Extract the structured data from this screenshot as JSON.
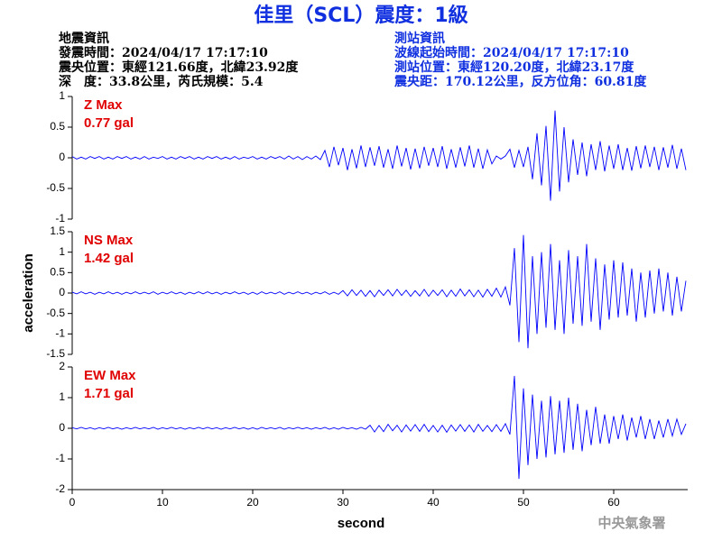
{
  "header": {
    "title": "佳里（SCL）震度：1級",
    "info_left": [
      "地震資訊",
      "發震時間：2024/04/17 17:17:10",
      "震央位置：東經121.66度，北緯23.92度",
      "深　度：33.8公里，芮氏規模：5.4"
    ],
    "info_right": [
      "測站資訊",
      "波線起始時間：2024/04/17 17:17:10",
      "測站位置：東經120.20度，北緯23.17度",
      "震央距：170.12公里，反方位角：60.81度"
    ]
  },
  "footer": "中央氣象署",
  "chart_data": [
    {
      "type": "line",
      "color": "#0000ff",
      "annotation": [
        "Z Max",
        "0.77 gal"
      ],
      "xlim": [
        0,
        68.2
      ],
      "ylim": [
        -1,
        1
      ],
      "yticks": [
        1,
        0.5,
        0,
        -0.5,
        -1
      ],
      "x": [
        0,
        0.5,
        1,
        1.5,
        2,
        2.5,
        3,
        3.5,
        4,
        4.5,
        5,
        5.5,
        6,
        6.5,
        7,
        7.5,
        8,
        8.5,
        9,
        9.5,
        10,
        10.5,
        11,
        11.5,
        12,
        12.5,
        13,
        13.5,
        14,
        14.5,
        15,
        15.5,
        16,
        16.5,
        17,
        17.5,
        18,
        18.5,
        19,
        19.5,
        20,
        20.5,
        21,
        21.5,
        22,
        22.5,
        23,
        23.5,
        24,
        24.5,
        25,
        25.5,
        26,
        26.5,
        27,
        27.5,
        28,
        28.5,
        29,
        29.5,
        30,
        30.5,
        31,
        31.5,
        32,
        32.5,
        33,
        33.5,
        34,
        34.5,
        35,
        35.5,
        36,
        36.5,
        37,
        37.5,
        38,
        38.5,
        39,
        39.5,
        40,
        40.5,
        41,
        41.5,
        42,
        42.5,
        43,
        43.5,
        44,
        44.5,
        45,
        45.5,
        46,
        46.5,
        47,
        47.5,
        48,
        48.5,
        49,
        49.5,
        50,
        50.5,
        51,
        51.5,
        52,
        52.5,
        53,
        53.5,
        54,
        54.5,
        55,
        55.5,
        56,
        56.5,
        57,
        57.5,
        58,
        58.5,
        59,
        59.5,
        60,
        60.5,
        61,
        61.5,
        62,
        62.5,
        63,
        63.5,
        64,
        64.5,
        65,
        65.5,
        66,
        66.5,
        67,
        67.5,
        68
      ],
      "values": [
        0.02,
        -0.02,
        0.01,
        -0.02,
        0.02,
        -0.01,
        0.02,
        -0.02,
        0.01,
        -0.02,
        0.02,
        -0.01,
        0.02,
        -0.02,
        0.01,
        -0.02,
        0.02,
        -0.02,
        0.01,
        -0.01,
        0.02,
        -0.02,
        0.01,
        -0.02,
        0.02,
        -0.01,
        0.02,
        -0.02,
        0.01,
        -0.02,
        0.02,
        -0.01,
        0.02,
        -0.02,
        0.01,
        -0.02,
        0.02,
        -0.02,
        0.01,
        -0.01,
        0.02,
        -0.02,
        0.01,
        -0.02,
        0.02,
        -0.01,
        0.02,
        -0.02,
        0.03,
        -0.02,
        0.02,
        -0.03,
        0.02,
        -0.02,
        0.03,
        -0.03,
        0.12,
        -0.15,
        0.18,
        -0.12,
        0.16,
        -0.2,
        0.14,
        -0.17,
        0.2,
        -0.15,
        0.17,
        -0.13,
        0.19,
        -0.16,
        0.14,
        -0.18,
        0.2,
        -0.14,
        0.16,
        -0.19,
        0.15,
        -0.17,
        0.18,
        -0.13,
        0.16,
        -0.15,
        0.19,
        -0.18,
        0.14,
        -0.16,
        0.17,
        -0.14,
        0.2,
        -0.16,
        0.15,
        -0.18,
        0.13,
        -0.1,
        0.03,
        -0.02,
        0.03,
        0.14,
        -0.16,
        0.12,
        -0.15,
        0.18,
        -0.35,
        0.4,
        -0.45,
        0.52,
        -0.7,
        0.77,
        -0.55,
        0.5,
        -0.4,
        0.3,
        -0.28,
        0.25,
        -0.3,
        0.22,
        -0.2,
        0.27,
        -0.22,
        0.2,
        -0.18,
        0.22,
        -0.2,
        0.16,
        -0.21,
        0.19,
        -0.17,
        0.2,
        -0.15,
        0.18,
        -0.2,
        0.17,
        -0.16,
        0.21,
        -0.18,
        0.15,
        -0.2
      ]
    },
    {
      "type": "line",
      "color": "#0000ff",
      "annotation": [
        "NS Max",
        "1.42 gal"
      ],
      "ylabel": "acceleration",
      "xlim": [
        0,
        68.2
      ],
      "ylim": [
        -1.5,
        1.5
      ],
      "yticks": [
        1.5,
        1,
        0.5,
        0,
        -0.5,
        -1,
        -1.5
      ],
      "x": [
        0,
        0.5,
        1,
        1.5,
        2,
        2.5,
        3,
        3.5,
        4,
        4.5,
        5,
        5.5,
        6,
        6.5,
        7,
        7.5,
        8,
        8.5,
        9,
        9.5,
        10,
        10.5,
        11,
        11.5,
        12,
        12.5,
        13,
        13.5,
        14,
        14.5,
        15,
        15.5,
        16,
        16.5,
        17,
        17.5,
        18,
        18.5,
        19,
        19.5,
        20,
        20.5,
        21,
        21.5,
        22,
        22.5,
        23,
        23.5,
        24,
        24.5,
        25,
        25.5,
        26,
        26.5,
        27,
        27.5,
        28,
        28.5,
        29,
        29.5,
        30,
        30.5,
        31,
        31.5,
        32,
        32.5,
        33,
        33.5,
        34,
        34.5,
        35,
        35.5,
        36,
        36.5,
        37,
        37.5,
        38,
        38.5,
        39,
        39.5,
        40,
        40.5,
        41,
        41.5,
        42,
        42.5,
        43,
        43.5,
        44,
        44.5,
        45,
        45.5,
        46,
        46.5,
        47,
        47.5,
        48,
        48.5,
        49,
        49.5,
        50,
        50.5,
        51,
        51.5,
        52,
        52.5,
        53,
        53.5,
        54,
        54.5,
        55,
        55.5,
        56,
        56.5,
        57,
        57.5,
        58,
        58.5,
        59,
        59.5,
        60,
        60.5,
        61,
        61.5,
        62,
        62.5,
        63,
        63.5,
        64,
        64.5,
        65,
        65.5,
        66,
        66.5,
        67,
        67.5,
        68
      ],
      "values": [
        0.02,
        -0.02,
        0.03,
        -0.02,
        0.02,
        -0.03,
        0.02,
        -0.02,
        0.03,
        -0.02,
        0.02,
        -0.03,
        0.02,
        -0.02,
        0.03,
        -0.02,
        0.02,
        -0.02,
        0.03,
        -0.03,
        0.02,
        -0.02,
        0.03,
        -0.02,
        0.02,
        -0.03,
        0.02,
        -0.02,
        0.03,
        -0.02,
        0.03,
        -0.02,
        0.02,
        -0.03,
        0.02,
        -0.02,
        0.03,
        -0.02,
        0.02,
        -0.03,
        0.02,
        -0.03,
        0.03,
        -0.02,
        0.02,
        -0.02,
        0.03,
        -0.03,
        0.02,
        -0.02,
        0.03,
        -0.02,
        0.02,
        -0.03,
        0.02,
        -0.02,
        0.03,
        -0.03,
        0.02,
        -0.03,
        0.06,
        -0.07,
        0.08,
        -0.06,
        0.07,
        -0.08,
        0.06,
        -0.09,
        0.07,
        -0.06,
        0.08,
        -0.07,
        0.09,
        -0.06,
        0.07,
        -0.08,
        0.06,
        -0.07,
        0.09,
        -0.08,
        0.07,
        -0.06,
        0.08,
        -0.09,
        0.07,
        -0.08,
        0.1,
        -0.07,
        0.08,
        -0.09,
        0.07,
        -0.1,
        0.09,
        -0.08,
        0.12,
        -0.1,
        0.15,
        -0.3,
        1.1,
        -1.2,
        1.42,
        -1.35,
        0.9,
        -1.0,
        1.0,
        -0.85,
        1.2,
        -0.9,
        0.8,
        -1.0,
        1.05,
        -0.75,
        0.9,
        -0.8,
        1.2,
        -0.7,
        0.85,
        -0.9,
        0.7,
        -0.65,
        0.8,
        -0.6,
        0.75,
        -0.55,
        0.6,
        -0.7,
        0.5,
        -0.6,
        0.55,
        -0.5,
        0.6,
        -0.45,
        0.5,
        -0.55,
        0.4,
        -0.45,
        0.3
      ]
    },
    {
      "type": "line",
      "color": "#0000ff",
      "annotation": [
        "EW Max",
        "1.71 gal"
      ],
      "xlabel": "second",
      "xlim": [
        0,
        68.2
      ],
      "xticks": [
        0,
        10,
        20,
        30,
        40,
        50,
        60
      ],
      "ylim": [
        -2,
        2
      ],
      "yticks": [
        2,
        1,
        0,
        -1,
        -2
      ],
      "x": [
        0,
        0.5,
        1,
        1.5,
        2,
        2.5,
        3,
        3.5,
        4,
        4.5,
        5,
        5.5,
        6,
        6.5,
        7,
        7.5,
        8,
        8.5,
        9,
        9.5,
        10,
        10.5,
        11,
        11.5,
        12,
        12.5,
        13,
        13.5,
        14,
        14.5,
        15,
        15.5,
        16,
        16.5,
        17,
        17.5,
        18,
        18.5,
        19,
        19.5,
        20,
        20.5,
        21,
        21.5,
        22,
        22.5,
        23,
        23.5,
        24,
        24.5,
        25,
        25.5,
        26,
        26.5,
        27,
        27.5,
        28,
        28.5,
        29,
        29.5,
        30,
        30.5,
        31,
        31.5,
        32,
        32.5,
        33,
        33.5,
        34,
        34.5,
        35,
        35.5,
        36,
        36.5,
        37,
        37.5,
        38,
        38.5,
        39,
        39.5,
        40,
        40.5,
        41,
        41.5,
        42,
        42.5,
        43,
        43.5,
        44,
        44.5,
        45,
        45.5,
        46,
        46.5,
        47,
        47.5,
        48,
        48.5,
        49,
        49.5,
        50,
        50.5,
        51,
        51.5,
        52,
        52.5,
        53,
        53.5,
        54,
        54.5,
        55,
        55.5,
        56,
        56.5,
        57,
        57.5,
        58,
        58.5,
        59,
        59.5,
        60,
        60.5,
        61,
        61.5,
        62,
        62.5,
        63,
        63.5,
        64,
        64.5,
        65,
        65.5,
        66,
        66.5,
        67,
        67.5,
        68
      ],
      "values": [
        0.02,
        -0.02,
        0.03,
        -0.02,
        0.02,
        -0.03,
        0.02,
        -0.02,
        0.03,
        -0.02,
        0.02,
        -0.03,
        0.02,
        -0.02,
        0.03,
        -0.02,
        0.02,
        -0.02,
        0.03,
        -0.03,
        0.02,
        -0.02,
        0.03,
        -0.02,
        0.02,
        -0.03,
        0.02,
        -0.02,
        0.03,
        -0.02,
        0.03,
        -0.02,
        0.02,
        -0.03,
        0.02,
        -0.02,
        0.03,
        -0.02,
        0.02,
        -0.03,
        0.02,
        -0.03,
        0.03,
        -0.02,
        0.02,
        -0.02,
        0.03,
        -0.03,
        0.02,
        -0.02,
        0.03,
        -0.02,
        0.02,
        -0.03,
        0.02,
        -0.02,
        0.03,
        -0.03,
        0.02,
        -0.03,
        0.03,
        -0.02,
        0.02,
        -0.03,
        0.03,
        -0.03,
        0.1,
        -0.12,
        0.09,
        -0.11,
        0.13,
        -0.08,
        0.1,
        -0.12,
        0.11,
        -0.09,
        0.12,
        -0.1,
        0.13,
        -0.11,
        0.09,
        -0.12,
        0.1,
        -0.13,
        0.11,
        -0.09,
        0.12,
        -0.1,
        0.11,
        -0.12,
        0.13,
        -0.1,
        0.09,
        -0.11,
        0.12,
        -0.1,
        0.15,
        -0.2,
        1.71,
        -1.65,
        1.3,
        -1.2,
        1.1,
        -1.0,
        0.9,
        -0.95,
        1.05,
        -0.85,
        0.9,
        -0.8,
        1.0,
        -0.7,
        0.8,
        -0.75,
        0.6,
        -0.55,
        0.7,
        -0.5,
        0.45,
        -0.5,
        0.4,
        -0.35,
        0.45,
        -0.4,
        0.35,
        -0.3,
        0.4,
        -0.35,
        0.3,
        -0.35,
        0.25,
        -0.3,
        0.3,
        -0.25,
        0.3,
        -0.2,
        0.15
      ]
    }
  ]
}
